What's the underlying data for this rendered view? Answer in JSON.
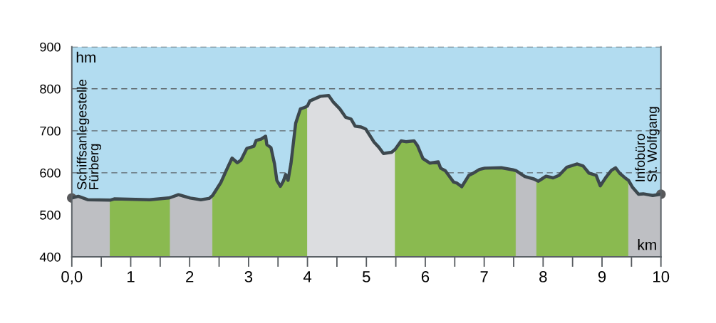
{
  "chart_data": {
    "type": "area",
    "xlabel": "km",
    "ylabel": "hm",
    "xlim": [
      0,
      10
    ],
    "ylim": [
      400,
      900
    ],
    "xticks": [
      {
        "value": 0,
        "label": "0,0"
      },
      {
        "value": 0.5,
        "label": null
      },
      1,
      {
        "value": 1.5,
        "label": null
      },
      2,
      {
        "value": 2.5,
        "label": null
      },
      3,
      {
        "value": 3.5,
        "label": null
      },
      4,
      {
        "value": 4.5,
        "label": null
      },
      5,
      {
        "value": 5.5,
        "label": null
      },
      6,
      {
        "value": 6.5,
        "label": null
      },
      7,
      {
        "value": 7.5,
        "label": null
      },
      8,
      {
        "value": 8.5,
        "label": null
      },
      9,
      {
        "value": 9.5,
        "label": null
      },
      10
    ],
    "yticks": [
      400,
      500,
      600,
      700,
      800,
      900
    ],
    "grid": "y",
    "bands": [
      {
        "axis": "y",
        "from": 400,
        "to": 900,
        "color": "#b2dcf0"
      }
    ],
    "series": [
      {
        "color": "#bebfc3",
        "x": [
          0,
          0.11,
          0.27,
          0.65
        ],
        "values": [
          540,
          544,
          536,
          535
        ]
      },
      {
        "color": "#8aba50",
        "x": [
          0.65,
          0.72,
          1.32,
          1.64,
          1.67
        ],
        "values": [
          535,
          538,
          536,
          540,
          541
        ]
      },
      {
        "color": "#bebfc3",
        "x": [
          1.67,
          1.81,
          2.01,
          2.19,
          2.33,
          2.39
        ],
        "values": [
          541,
          548,
          540,
          536,
          539,
          546
        ]
      },
      {
        "color": "#8aba50",
        "x": [
          2.39,
          2.53,
          2.63,
          2.72,
          2.81,
          2.87,
          2.97,
          3.09,
          3.13,
          3.21,
          3.29,
          3.31,
          3.38,
          3.44,
          3.48,
          3.54,
          3.59,
          3.63,
          3.67,
          3.72,
          3.8,
          3.88,
          3.96,
          4.0
        ],
        "values": [
          546,
          577,
          608,
          635,
          624,
          630,
          658,
          663,
          677,
          680,
          687,
          667,
          660,
          622,
          582,
          568,
          580,
          596,
          582,
          622,
          718,
          752,
          756,
          759
        ]
      },
      {
        "color": "#dcdde0",
        "x": [
          4.0,
          4.04,
          4.22,
          4.36,
          4.44,
          4.55,
          4.65,
          4.74,
          4.81,
          4.91,
          4.99,
          5.13,
          5.21,
          5.29,
          5.43,
          5.49
        ],
        "values": [
          759,
          771,
          782,
          784,
          768,
          752,
          732,
          728,
          711,
          709,
          704,
          673,
          661,
          646,
          649,
          656
        ]
      },
      {
        "color": "#8aba50",
        "x": [
          5.49,
          5.59,
          5.67,
          5.81,
          5.87,
          5.96,
          6.08,
          6.22,
          6.26,
          6.34,
          6.48,
          6.53,
          6.62,
          6.74,
          6.8,
          6.92,
          7.01,
          7.29,
          7.49,
          7.54
        ],
        "values": [
          656,
          676,
          674,
          676,
          664,
          634,
          623,
          626,
          611,
          605,
          578,
          576,
          567,
          594,
          598,
          608,
          611,
          612,
          607,
          605
        ]
      },
      {
        "color": "#bebfc3",
        "x": [
          7.54,
          7.69,
          7.85,
          7.89
        ],
        "values": [
          605,
          591,
          585,
          582
        ]
      },
      {
        "color": "#8aba50",
        "x": [
          7.89,
          7.92,
          8.05,
          8.17,
          8.27,
          8.4,
          8.58,
          8.68,
          8.78,
          8.9,
          8.97,
          9.06,
          9.16,
          9.23,
          9.3,
          9.4,
          9.45
        ],
        "values": [
          582,
          580,
          592,
          588,
          594,
          613,
          621,
          616,
          599,
          594,
          569,
          588,
          606,
          612,
          599,
          587,
          582
        ]
      },
      {
        "color": "#bebfc3",
        "x": [
          9.45,
          9.52,
          9.62,
          9.7,
          9.86,
          10
        ],
        "values": [
          582,
          565,
          549,
          550,
          546,
          549
        ]
      },
      {
        "type": "line",
        "color": "#3d484e",
        "x": [
          0,
          0.11,
          0.27,
          0.65,
          0.72,
          1.32,
          1.64,
          1.67,
          1.81,
          2.01,
          2.19,
          2.33,
          2.39,
          2.53,
          2.63,
          2.72,
          2.81,
          2.87,
          2.97,
          3.09,
          3.13,
          3.21,
          3.29,
          3.31,
          3.38,
          3.44,
          3.48,
          3.54,
          3.59,
          3.63,
          3.67,
          3.72,
          3.8,
          3.88,
          3.96,
          4.0,
          4.04,
          4.22,
          4.36,
          4.44,
          4.55,
          4.65,
          4.74,
          4.81,
          4.91,
          4.99,
          5.13,
          5.21,
          5.29,
          5.43,
          5.49,
          5.59,
          5.67,
          5.81,
          5.87,
          5.96,
          6.08,
          6.22,
          6.26,
          6.34,
          6.48,
          6.53,
          6.62,
          6.74,
          6.8,
          6.92,
          7.01,
          7.29,
          7.49,
          7.54,
          7.69,
          7.85,
          7.89,
          7.92,
          8.05,
          8.17,
          8.27,
          8.4,
          8.58,
          8.68,
          8.78,
          8.9,
          8.97,
          9.06,
          9.16,
          9.23,
          9.3,
          9.4,
          9.45,
          9.52,
          9.62,
          9.7,
          9.86,
          10
        ],
        "values": [
          540,
          544,
          536,
          535,
          538,
          536,
          540,
          541,
          548,
          540,
          536,
          539,
          546,
          577,
          608,
          635,
          624,
          630,
          658,
          663,
          677,
          680,
          687,
          667,
          660,
          622,
          582,
          568,
          580,
          596,
          582,
          622,
          718,
          752,
          756,
          759,
          771,
          782,
          784,
          768,
          752,
          732,
          728,
          711,
          709,
          704,
          673,
          661,
          646,
          649,
          656,
          676,
          674,
          676,
          664,
          634,
          623,
          626,
          611,
          605,
          578,
          576,
          567,
          594,
          598,
          608,
          611,
          612,
          607,
          605,
          591,
          585,
          582,
          580,
          592,
          588,
          594,
          613,
          621,
          616,
          599,
          594,
          569,
          588,
          606,
          612,
          599,
          587,
          582,
          565,
          549,
          550,
          546,
          549
        ]
      },
      {
        "type": "scatter",
        "color": "#58595b",
        "marker": "circle",
        "x": [
          0,
          10
        ],
        "values": [
          540,
          549
        ]
      }
    ],
    "annotations": [
      {
        "text": "Schiffsanlegestelle\nFürberg",
        "x": 0,
        "y": 540
      },
      {
        "text": "Infobüro\nSt. Wolfgang",
        "x": 10,
        "y": 549
      }
    ]
  }
}
